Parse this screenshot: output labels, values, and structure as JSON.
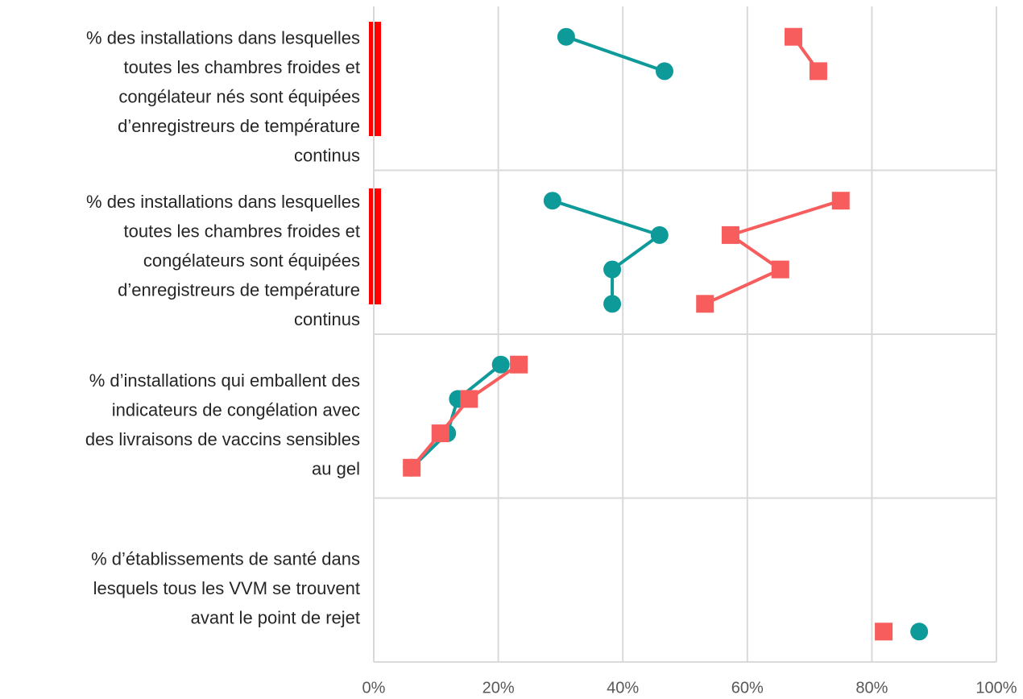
{
  "chart_data": {
    "type": "line",
    "categories": [
      [
        "% des installations dans lesquelles",
        "toutes les chambres froides et",
        "congélateur nés sont équipées",
        "d’enregistreurs de température",
        "continus"
      ],
      [
        "% des installations dans lesquelles",
        "toutes les chambres froides et",
        "congélateurs sont équipées",
        "d’enregistreurs de température",
        "continus"
      ],
      [
        "% d’installations qui emballent des",
        "indicateurs de congélation avec",
        "des livraisons de vaccins sensibles",
        "au gel"
      ],
      [
        "% d’établissements de santé dans",
        "lesquels tous les VVM se trouvent",
        "avant le point de rejet"
      ]
    ],
    "series": [
      {
        "color": "#0f9a9a",
        "marker": "circle",
        "values": [
          [
            30.9,
            46.7,
            null,
            null
          ],
          [
            28.7,
            45.9,
            38.3,
            38.3
          ],
          [
            20.4,
            13.5,
            11.8,
            6.1
          ],
          [
            null,
            null,
            null,
            87.6
          ]
        ]
      },
      {
        "color": "#f75d5d",
        "marker": "square",
        "values": [
          [
            67.4,
            71.4,
            null,
            null
          ],
          [
            75.0,
            57.3,
            65.3,
            53.2
          ],
          [
            23.3,
            15.3,
            10.7,
            6.1
          ],
          [
            null,
            null,
            null,
            81.9
          ]
        ]
      }
    ],
    "xlim": [
      0,
      100
    ],
    "xticks": [
      {
        "value": 0,
        "label": "0%"
      },
      {
        "value": 20,
        "label": "20%"
      },
      {
        "value": 40,
        "label": "40%"
      },
      {
        "value": 60,
        "label": "60%"
      },
      {
        "value": 80,
        "label": "80%"
      },
      {
        "value": 100,
        "label": "100%"
      }
    ],
    "grid": true
  }
}
